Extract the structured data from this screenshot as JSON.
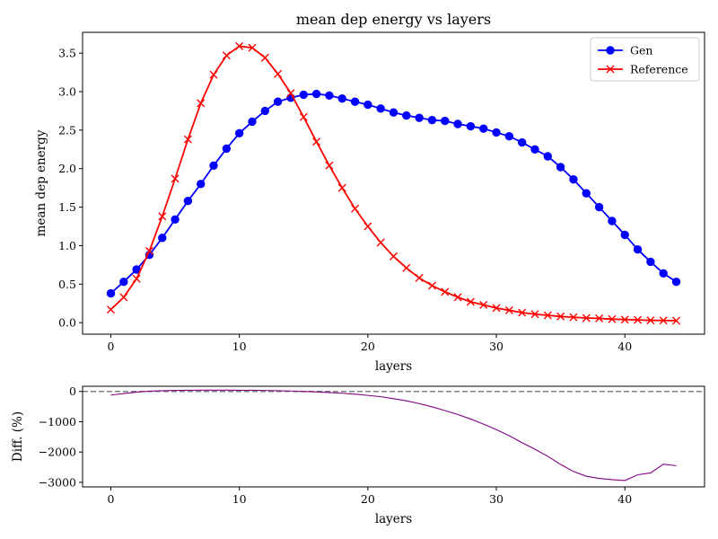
{
  "chart_data": [
    {
      "type": "line",
      "title": "mean dep energy vs layers",
      "xlabel": "layers",
      "ylabel": "mean dep energy",
      "xlim": [
        -2.2,
        46.2
      ],
      "ylim": [
        -0.15,
        3.77
      ],
      "xticks": [
        0,
        10,
        20,
        30,
        40
      ],
      "yticks": [
        0.0,
        0.5,
        1.0,
        1.5,
        2.0,
        2.5,
        3.0,
        3.5
      ],
      "ytick_labels": [
        "0.0",
        "0.5",
        "1.0",
        "1.5",
        "2.0",
        "2.5",
        "3.0",
        "3.5"
      ],
      "legend_position": "upper right",
      "series": [
        {
          "name": "Gen",
          "color": "#0000ff",
          "marker": "circle",
          "x": [
            0,
            1,
            2,
            3,
            4,
            5,
            6,
            7,
            8,
            9,
            10,
            11,
            12,
            13,
            14,
            15,
            16,
            17,
            18,
            19,
            20,
            21,
            22,
            23,
            24,
            25,
            26,
            27,
            28,
            29,
            30,
            31,
            32,
            33,
            34,
            35,
            36,
            37,
            38,
            39,
            40,
            41,
            42,
            43,
            44
          ],
          "values": [
            0.38,
            0.53,
            0.69,
            0.88,
            1.1,
            1.34,
            1.58,
            1.8,
            2.04,
            2.26,
            2.46,
            2.61,
            2.75,
            2.87,
            2.92,
            2.96,
            2.97,
            2.95,
            2.91,
            2.87,
            2.83,
            2.78,
            2.73,
            2.69,
            2.66,
            2.63,
            2.62,
            2.58,
            2.55,
            2.52,
            2.47,
            2.42,
            2.34,
            2.25,
            2.16,
            2.02,
            1.86,
            1.68,
            1.5,
            1.32,
            1.14,
            0.95,
            0.79,
            0.64,
            0.53
          ]
        },
        {
          "name": "Reference",
          "color": "#ff0000",
          "marker": "x",
          "x": [
            0,
            1,
            2,
            3,
            4,
            5,
            6,
            7,
            8,
            9,
            10,
            11,
            12,
            13,
            14,
            15,
            16,
            17,
            18,
            19,
            20,
            21,
            22,
            23,
            24,
            25,
            26,
            27,
            28,
            29,
            30,
            31,
            32,
            33,
            34,
            35,
            36,
            37,
            38,
            39,
            40,
            41,
            42,
            43,
            44
          ],
          "values": [
            0.17,
            0.33,
            0.57,
            0.93,
            1.38,
            1.87,
            2.38,
            2.85,
            3.22,
            3.47,
            3.59,
            3.57,
            3.44,
            3.23,
            2.98,
            2.67,
            2.35,
            2.04,
            1.75,
            1.48,
            1.25,
            1.04,
            0.86,
            0.71,
            0.58,
            0.48,
            0.4,
            0.33,
            0.27,
            0.23,
            0.19,
            0.16,
            0.13,
            0.11,
            0.095,
            0.08,
            0.07,
            0.06,
            0.055,
            0.045,
            0.04,
            0.035,
            0.03,
            0.028,
            0.025
          ]
        }
      ]
    },
    {
      "type": "line",
      "xlabel": "layers",
      "ylabel": "Diff. (%)",
      "xlim": [
        -2.2,
        46.2
      ],
      "ylim": [
        -3150,
        170
      ],
      "xticks": [
        0,
        10,
        20,
        30,
        40
      ],
      "yticks": [
        0,
        -1000,
        -2000,
        -3000
      ],
      "ytick_labels": [
        "0",
        "−1000",
        "−2000",
        "−3000"
      ],
      "reference_line": {
        "value": 0,
        "color": "#808080",
        "style": "dashed"
      },
      "series": [
        {
          "color": "#800080",
          "x": [
            0,
            1,
            2,
            3,
            4,
            5,
            6,
            7,
            8,
            9,
            10,
            11,
            12,
            13,
            14,
            15,
            16,
            17,
            18,
            19,
            20,
            21,
            22,
            23,
            24,
            25,
            26,
            27,
            28,
            29,
            30,
            31,
            32,
            33,
            34,
            35,
            36,
            37,
            38,
            39,
            40,
            41,
            42,
            43,
            44
          ],
          "values": [
            -120,
            -70,
            -25,
            10,
            25,
            35,
            40,
            42,
            43,
            42,
            40,
            38,
            33,
            25,
            14,
            -2,
            -18,
            -35,
            -60,
            -90,
            -130,
            -175,
            -240,
            -310,
            -400,
            -510,
            -630,
            -760,
            -910,
            -1080,
            -1260,
            -1460,
            -1690,
            -1910,
            -2140,
            -2410,
            -2640,
            -2800,
            -2870,
            -2910,
            -2940,
            -2750,
            -2690,
            -2400,
            -2450
          ]
        }
      ]
    }
  ]
}
